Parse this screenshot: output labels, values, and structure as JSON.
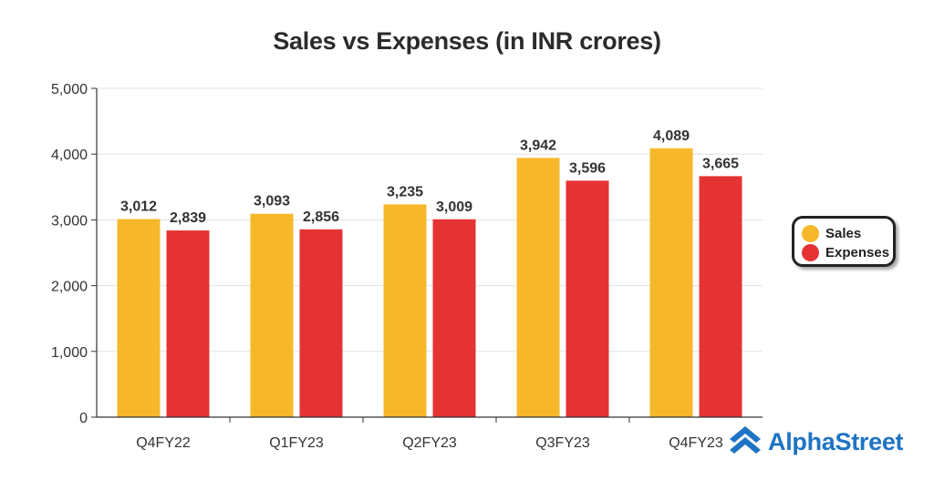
{
  "chart_data": {
    "type": "bar",
    "title": "Sales vs Expenses (in INR crores)",
    "categories": [
      "Q4FY22",
      "Q1FY23",
      "Q2FY23",
      "Q3FY23",
      "Q4FY23"
    ],
    "series": [
      {
        "name": "Sales",
        "color": "#f6b82a",
        "values": [
          3012,
          3093,
          3235,
          3942,
          4089
        ],
        "labels": [
          "3,012",
          "3,093",
          "3,235",
          "3,942",
          "4,089"
        ]
      },
      {
        "name": "Expenses",
        "color": "#e53333",
        "values": [
          2839,
          2856,
          3009,
          3596,
          3665
        ],
        "labels": [
          "2,839",
          "2,856",
          "3,009",
          "3,596",
          "3,665"
        ]
      }
    ],
    "ylim": [
      0,
      5000
    ],
    "yticks": [
      0,
      1000,
      2000,
      3000,
      4000,
      5000
    ],
    "ytick_labels": [
      "0",
      "1,000",
      "2,000",
      "3,000",
      "4,000",
      "5,000"
    ],
    "xlabel": "",
    "ylabel": "",
    "grid": true,
    "legend_position": "right"
  },
  "legend": {
    "items": [
      {
        "label": "Sales",
        "color": "#f6b82a"
      },
      {
        "label": "Expenses",
        "color": "#e53333"
      }
    ]
  },
  "brand": {
    "name": "AlphaStreet",
    "logo_icon": "alphastreet-chevron-logo",
    "color": "#1e74c4"
  }
}
